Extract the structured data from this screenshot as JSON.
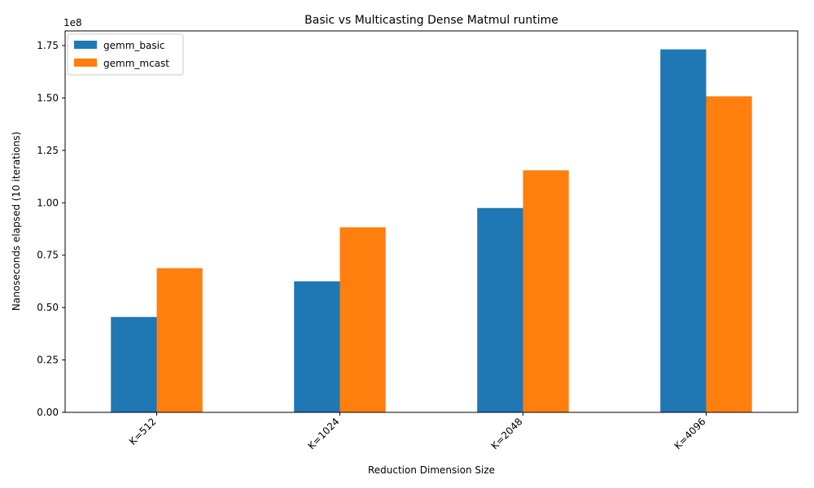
{
  "chart_data": {
    "type": "bar",
    "title": "Basic vs Multicasting Dense Matmul runtime",
    "xlabel": "Reduction Dimension Size",
    "ylabel": "Nanoseconds elapsed (10 iterations)",
    "y_offset_label": "1e8",
    "categories": [
      "K=512",
      "K=1024",
      "K=2048",
      "K=4096"
    ],
    "series": [
      {
        "name": "gemm_basic",
        "color": "#1f77b4",
        "values": [
          45500000,
          62500000,
          97500000,
          173200000
        ]
      },
      {
        "name": "gemm_mcast",
        "color": "#ff7f0e",
        "values": [
          68800000,
          88300000,
          115500000,
          150800000
        ]
      }
    ],
    "ylim": [
      0,
      182000000
    ],
    "yticks": [
      0,
      25000000,
      50000000,
      75000000,
      100000000,
      125000000,
      150000000,
      175000000
    ],
    "ytick_labels": [
      "0.00",
      "0.25",
      "0.50",
      "0.75",
      "1.00",
      "1.25",
      "1.50",
      "1.75"
    ],
    "legend_position": "top-left",
    "grid": false
  }
}
